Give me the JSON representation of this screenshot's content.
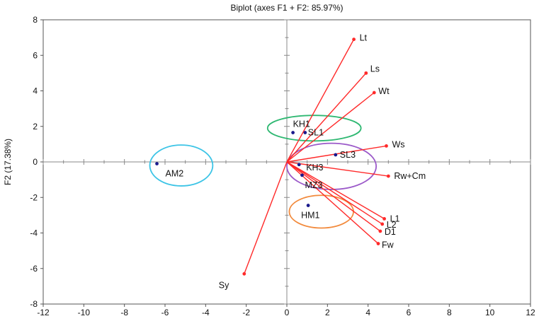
{
  "chart_data": {
    "type": "scatter",
    "title": "Biplot (axes F1 + F2: 85.97%)",
    "xlabel": "",
    "ylabel": "F2 (17.38%)",
    "xlim": [
      -12,
      12
    ],
    "ylim": [
      -8,
      8
    ],
    "x_ticks": [
      -12,
      -10,
      -8,
      -6,
      -4,
      -2,
      0,
      2,
      4,
      6,
      8,
      10,
      12
    ],
    "y_ticks": [
      -8,
      -6,
      -4,
      -2,
      0,
      2,
      4,
      6,
      8
    ],
    "grid": false,
    "legend": "none",
    "colors": {
      "vector": "#ff2a2a",
      "observation": "#1a1a8c",
      "axis_line": "#888888",
      "frame": "#555555"
    },
    "variables": [
      {
        "label": "Lt",
        "x": 3.3,
        "y": 6.9
      },
      {
        "label": "Ls",
        "x": 3.9,
        "y": 5.0
      },
      {
        "label": "Wt",
        "x": 4.3,
        "y": 3.9
      },
      {
        "label": "Ws",
        "x": 4.9,
        "y": 0.9
      },
      {
        "label": "Rw+Cm",
        "x": 5.0,
        "y": -0.8
      },
      {
        "label": "L1",
        "x": 4.8,
        "y": -3.2
      },
      {
        "label": "L2",
        "x": 4.7,
        "y": -3.5
      },
      {
        "label": "D1",
        "x": 4.6,
        "y": -3.9
      },
      {
        "label": "Fw",
        "x": 4.5,
        "y": -4.6
      },
      {
        "label": "Sy",
        "x": -2.1,
        "y": -6.3
      }
    ],
    "observations": [
      {
        "label": "AM2",
        "x": -6.4,
        "y": -0.1
      },
      {
        "label": "KH1",
        "x": 0.3,
        "y": 1.65
      },
      {
        "label": "SL1",
        "x": 0.9,
        "y": 1.65
      },
      {
        "label": "SL3",
        "x": 2.4,
        "y": 0.4
      },
      {
        "label": "KH3",
        "x": 0.6,
        "y": -0.15
      },
      {
        "label": "MZ3",
        "x": 0.75,
        "y": -0.75
      },
      {
        "label": "HM1",
        "x": 1.05,
        "y": -2.45
      }
    ],
    "ellipses": [
      {
        "cx": -5.2,
        "cy": -0.2,
        "rx": 1.55,
        "ry": 1.15,
        "color": "#3cc4e6"
      },
      {
        "cx": 1.35,
        "cy": 1.9,
        "rx": 2.3,
        "ry": 0.72,
        "color": "#2fb872"
      },
      {
        "cx": 2.2,
        "cy": -0.25,
        "rx": 2.2,
        "ry": 1.3,
        "color": "#9b59c9"
      },
      {
        "cx": 1.7,
        "cy": -2.8,
        "rx": 1.58,
        "ry": 0.92,
        "color": "#f28a3c"
      }
    ]
  }
}
